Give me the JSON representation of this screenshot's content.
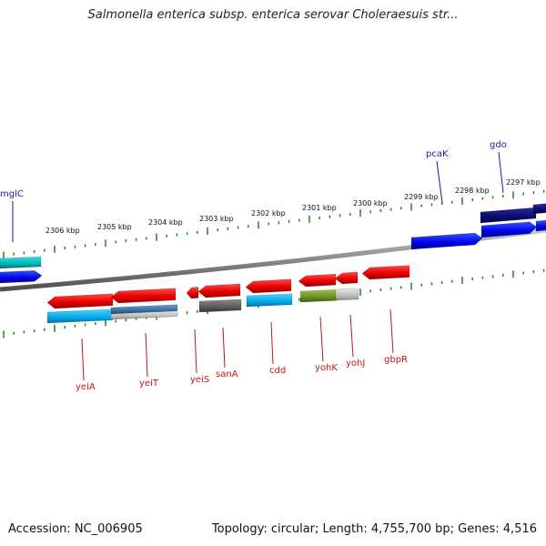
{
  "title": "Salmonella enterica subsp. enterica serovar Choleraesuis str...",
  "footer": {
    "accession": "Accession: NC_006905",
    "summary": "Topology: circular; Length: 4,755,700 bp; Genes: 4,516"
  },
  "colors": {
    "backbone": "#8a8a8a",
    "tick": "#2e8b2e",
    "top_label": "#1a1a9e",
    "bottom_label": "#c81414"
  },
  "ruler": {
    "labels": [
      "2306 kbp",
      "2305 kbp",
      "2304 kbp",
      "2303 kbp",
      "2302 kbp",
      "2301 kbp",
      "2300 kbp",
      "2299 kbp",
      "2298 kbp",
      "2297 kbp"
    ]
  },
  "genes_top": [
    {
      "name": "mglC"
    },
    {
      "name": "pcaK"
    },
    {
      "name": "gdo"
    }
  ],
  "genes_bottom": [
    {
      "name": "yeiA"
    },
    {
      "name": "yeiT"
    },
    {
      "name": "yeiS"
    },
    {
      "name": "sanA"
    },
    {
      "name": "cdd"
    },
    {
      "name": "yohK"
    },
    {
      "name": "yohJ"
    },
    {
      "name": "gbpR"
    }
  ]
}
